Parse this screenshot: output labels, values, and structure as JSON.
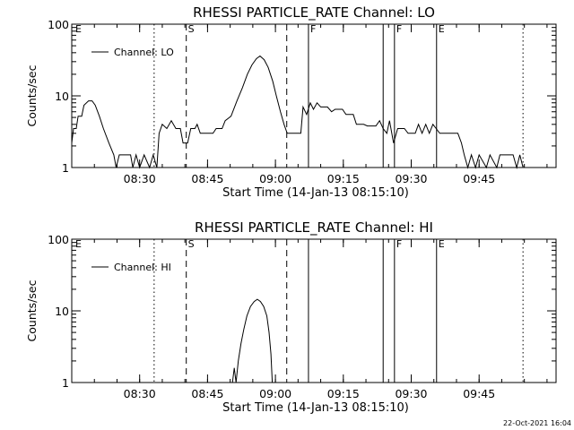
{
  "footer": {
    "timestamp": "22-Oct-2021 16:04"
  },
  "chart_data": [
    {
      "type": "line",
      "title": "RHESSI PARTICLE_RATE Channel: LO",
      "xlabel": "Start Time (14-Jan-13 08:15:10)",
      "ylabel": "Counts/sec",
      "yscale": "log",
      "ylim": [
        1,
        100
      ],
      "xlim_minutes": [
        0,
        107
      ],
      "x_ticks": [
        {
          "t": 15,
          "label": "08:30"
        },
        {
          "t": 30,
          "label": "08:45"
        },
        {
          "t": 45,
          "label": "09:00"
        },
        {
          "t": 60,
          "label": "09:15"
        },
        {
          "t": 75,
          "label": "09:30"
        },
        {
          "t": 90,
          "label": "09:45"
        }
      ],
      "y_ticks": [
        {
          "v": 1,
          "label": "1"
        },
        {
          "v": 10,
          "label": "10"
        },
        {
          "v": 100,
          "label": "100"
        }
      ],
      "legend": {
        "placement": "top-left",
        "label": "Channel: LO"
      },
      "event_markers": [
        {
          "t": 0.4,
          "label": "E",
          "style": "none"
        },
        {
          "t": 18.2,
          "label": "",
          "style": "dotted"
        },
        {
          "t": 25.3,
          "label": "S",
          "style": "dashed"
        },
        {
          "t": 47.5,
          "label": "",
          "style": "dashed"
        },
        {
          "t": 52.3,
          "label": "F",
          "style": "solid"
        },
        {
          "t": 68.8,
          "label": "",
          "style": "solid"
        },
        {
          "t": 71.3,
          "label": "F",
          "style": "solid"
        },
        {
          "t": 80.6,
          "label": "E",
          "style": "solid"
        },
        {
          "t": 99.7,
          "label": "",
          "style": "dotted"
        }
      ],
      "series": [
        {
          "values": [
            [
              0.0,
              2.2
            ],
            [
              0.4,
              3.5
            ],
            [
              1.0,
              3.5
            ],
            [
              1.4,
              5.2
            ],
            [
              2.2,
              5.2
            ],
            [
              2.7,
              7.4
            ],
            [
              3.7,
              8.5
            ],
            [
              4.5,
              8.5
            ],
            [
              5.2,
              7.4
            ],
            [
              6.1,
              5.2
            ],
            [
              7.0,
              3.5
            ],
            [
              8.2,
              2.2
            ],
            [
              9.3,
              1.5
            ],
            [
              9.8,
              1.0
            ],
            [
              10.5,
              1.5
            ],
            [
              13.0,
              1.5
            ],
            [
              13.5,
              1.0
            ],
            [
              14.2,
              1.5
            ],
            [
              15.0,
              1.0
            ],
            [
              16.0,
              1.5
            ],
            [
              17.2,
              1.0
            ],
            [
              18.0,
              1.5
            ],
            [
              18.8,
              1.0
            ],
            [
              19.3,
              3.0
            ],
            [
              20.0,
              4.0
            ],
            [
              21.0,
              3.5
            ],
            [
              22.0,
              4.5
            ],
            [
              23.0,
              3.5
            ],
            [
              24.0,
              3.5
            ],
            [
              24.6,
              2.2
            ],
            [
              25.6,
              2.2
            ],
            [
              26.3,
              3.5
            ],
            [
              27.2,
              3.5
            ],
            [
              27.7,
              4.0
            ],
            [
              28.4,
              3.0
            ],
            [
              31.2,
              3.0
            ],
            [
              31.9,
              3.5
            ],
            [
              33.2,
              3.5
            ],
            [
              33.9,
              4.5
            ],
            [
              35.2,
              5.2
            ],
            [
              36.5,
              8.5
            ],
            [
              37.7,
              13.0
            ],
            [
              38.8,
              20.0
            ],
            [
              39.8,
              27.0
            ],
            [
              40.8,
              33.0
            ],
            [
              41.6,
              36.0
            ],
            [
              42.5,
              32.0
            ],
            [
              43.4,
              25.0
            ],
            [
              44.4,
              16.0
            ],
            [
              45.2,
              10.0
            ],
            [
              46.1,
              6.0
            ],
            [
              46.9,
              4.0
            ],
            [
              47.6,
              3.0
            ],
            [
              50.6,
              3.0
            ],
            [
              51.1,
              7.0
            ],
            [
              51.9,
              5.5
            ],
            [
              52.7,
              8.0
            ],
            [
              53.4,
              6.5
            ],
            [
              54.2,
              8.0
            ],
            [
              55.0,
              7.0
            ],
            [
              56.5,
              7.0
            ],
            [
              57.4,
              6.0
            ],
            [
              58.2,
              6.5
            ],
            [
              59.8,
              6.5
            ],
            [
              60.6,
              5.5
            ],
            [
              62.2,
              5.5
            ],
            [
              62.9,
              4.0
            ],
            [
              64.5,
              4.0
            ],
            [
              65.3,
              3.8
            ],
            [
              67.2,
              3.8
            ],
            [
              68.0,
              4.5
            ],
            [
              68.8,
              3.5
            ],
            [
              69.6,
              3.0
            ],
            [
              70.2,
              4.5
            ],
            [
              71.1,
              2.2
            ],
            [
              72.0,
              3.5
            ],
            [
              73.5,
              3.5
            ],
            [
              74.3,
              3.0
            ],
            [
              75.9,
              3.0
            ],
            [
              76.6,
              4.0
            ],
            [
              77.4,
              3.0
            ],
            [
              78.2,
              4.0
            ],
            [
              79.0,
              3.0
            ],
            [
              79.8,
              4.0
            ],
            [
              80.5,
              3.5
            ],
            [
              81.3,
              3.0
            ],
            [
              85.3,
              3.0
            ],
            [
              86.1,
              2.2
            ],
            [
              86.7,
              1.5
            ],
            [
              87.5,
              1.0
            ],
            [
              88.3,
              1.5
            ],
            [
              89.2,
              1.0
            ],
            [
              90.0,
              1.5
            ],
            [
              91.6,
              1.0
            ],
            [
              92.4,
              1.5
            ],
            [
              93.9,
              1.0
            ],
            [
              94.6,
              1.5
            ],
            [
              97.5,
              1.5
            ],
            [
              98.3,
              1.0
            ],
            [
              99.0,
              1.5
            ],
            [
              99.7,
              1.0
            ]
          ]
        }
      ]
    },
    {
      "type": "line",
      "title": "RHESSI PARTICLE_RATE Channel: HI",
      "xlabel": "Start Time (14-Jan-13 08:15:10)",
      "ylabel": "Counts/sec",
      "yscale": "log",
      "ylim": [
        1,
        100
      ],
      "xlim_minutes": [
        0,
        107
      ],
      "x_ticks": [
        {
          "t": 15,
          "label": "08:30"
        },
        {
          "t": 30,
          "label": "08:45"
        },
        {
          "t": 45,
          "label": "09:00"
        },
        {
          "t": 60,
          "label": "09:15"
        },
        {
          "t": 75,
          "label": "09:30"
        },
        {
          "t": 90,
          "label": "09:45"
        }
      ],
      "y_ticks": [
        {
          "v": 1,
          "label": "1"
        },
        {
          "v": 10,
          "label": "10"
        },
        {
          "v": 100,
          "label": "100"
        }
      ],
      "legend": {
        "placement": "top-left",
        "label": "Channel: HI"
      },
      "event_markers": [
        {
          "t": 0.4,
          "label": "E",
          "style": "none"
        },
        {
          "t": 18.2,
          "label": "",
          "style": "dotted"
        },
        {
          "t": 25.3,
          "label": "S",
          "style": "dashed"
        },
        {
          "t": 47.5,
          "label": "",
          "style": "dashed"
        },
        {
          "t": 52.3,
          "label": "",
          "style": "solid"
        },
        {
          "t": 68.8,
          "label": "",
          "style": "solid"
        },
        {
          "t": 71.3,
          "label": "F",
          "style": "solid"
        },
        {
          "t": 80.6,
          "label": "E",
          "style": "solid"
        },
        {
          "t": 99.7,
          "label": "",
          "style": "dotted"
        }
      ],
      "series": [
        {
          "values": [
            [
              35.5,
              1.0
            ],
            [
              35.9,
              1.6
            ],
            [
              36.3,
              1.0
            ],
            [
              36.8,
              2.0
            ],
            [
              37.4,
              3.5
            ],
            [
              38.0,
              5.5
            ],
            [
              38.7,
              8.5
            ],
            [
              39.5,
              11.5
            ],
            [
              40.3,
              13.5
            ],
            [
              41.0,
              14.5
            ],
            [
              41.7,
              13.5
            ],
            [
              42.4,
              11.5
            ],
            [
              43.1,
              8.5
            ],
            [
              43.6,
              5.0
            ],
            [
              44.0,
              2.5
            ],
            [
              44.3,
              1.0
            ]
          ]
        }
      ]
    }
  ]
}
